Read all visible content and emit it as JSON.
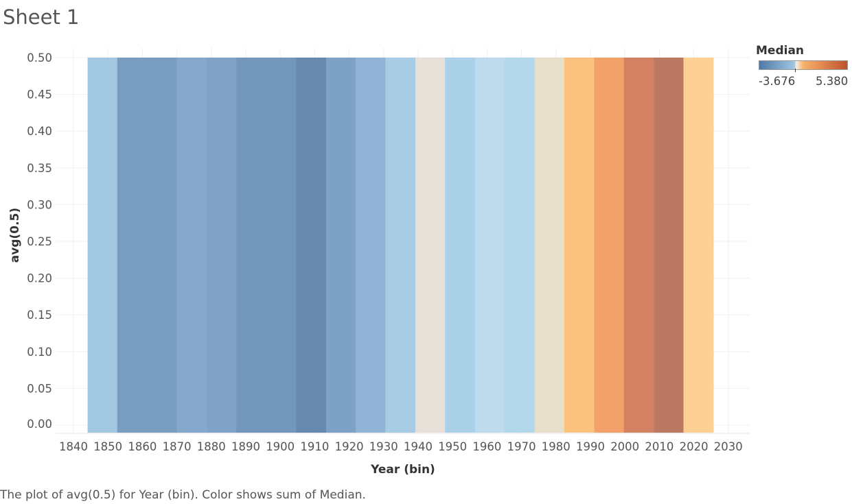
{
  "sheet_title": "Sheet 1",
  "caption": "The plot of avg(0.5) for Year (bin).  Color shows sum of Median.",
  "legend": {
    "title": "Median",
    "min_label": "-3.676",
    "max_label": "5.380",
    "gradient_colors": [
      "#4e79a7",
      "#a0c6e3",
      "#f2f0e6",
      "#f9b26b",
      "#c0522a"
    ]
  },
  "chart_data": {
    "type": "bar",
    "xlabel": "Year (bin)",
    "ylabel": "avg(0.5)",
    "x_ticks": [
      "1840",
      "1850",
      "1860",
      "1870",
      "1880",
      "1890",
      "1900",
      "1910",
      "1920",
      "1930",
      "1940",
      "1950",
      "1960",
      "1970",
      "1980",
      "1990",
      "2000",
      "2010",
      "2020",
      "2030"
    ],
    "y_ticks": [
      "0.00",
      "0.05",
      "0.10",
      "0.15",
      "0.20",
      "0.25",
      "0.30",
      "0.35",
      "0.40",
      "0.45",
      "0.50"
    ],
    "ylim": [
      0,
      0.5
    ],
    "xlim": [
      1840,
      2030
    ],
    "bin_width": 8.64,
    "bars": [
      {
        "bin_start": 1844.1,
        "value": 0.5,
        "color": "#a2c7e1"
      },
      {
        "bin_start": 1852.7,
        "value": 0.5,
        "color": "#789dbf"
      },
      {
        "bin_start": 1861.4,
        "value": 0.5,
        "color": "#789dbf"
      },
      {
        "bin_start": 1870.0,
        "value": 0.5,
        "color": "#85a8cc"
      },
      {
        "bin_start": 1878.7,
        "value": 0.5,
        "color": "#7fa2c6"
      },
      {
        "bin_start": 1887.3,
        "value": 0.5,
        "color": "#7297bb"
      },
      {
        "bin_start": 1896.0,
        "value": 0.5,
        "color": "#7297bb"
      },
      {
        "bin_start": 1904.6,
        "value": 0.5,
        "color": "#6689ad"
      },
      {
        "bin_start": 1913.3,
        "value": 0.5,
        "color": "#7ea1c6"
      },
      {
        "bin_start": 1921.9,
        "value": 0.5,
        "color": "#91b4d6"
      },
      {
        "bin_start": 1930.5,
        "value": 0.5,
        "color": "#a8cce4"
      },
      {
        "bin_start": 1939.2,
        "value": 0.5,
        "color": "#e6e0d8"
      },
      {
        "bin_start": 1947.8,
        "value": 0.5,
        "color": "#abd1e8"
      },
      {
        "bin_start": 1956.5,
        "value": 0.5,
        "color": "#bedbed"
      },
      {
        "bin_start": 1965.1,
        "value": 0.5,
        "color": "#b3d7eb"
      },
      {
        "bin_start": 1973.8,
        "value": 0.5,
        "color": "#e8dfca"
      },
      {
        "bin_start": 1982.4,
        "value": 0.5,
        "color": "#fbc27e"
      },
      {
        "bin_start": 1991.1,
        "value": 0.5,
        "color": "#f2a268"
      },
      {
        "bin_start": 1999.7,
        "value": 0.5,
        "color": "#d28262"
      },
      {
        "bin_start": 2008.4,
        "value": 0.5,
        "color": "#bb7862"
      },
      {
        "bin_start": 2017.0,
        "value": 0.5,
        "color": "#fed094"
      }
    ],
    "grid": true
  }
}
